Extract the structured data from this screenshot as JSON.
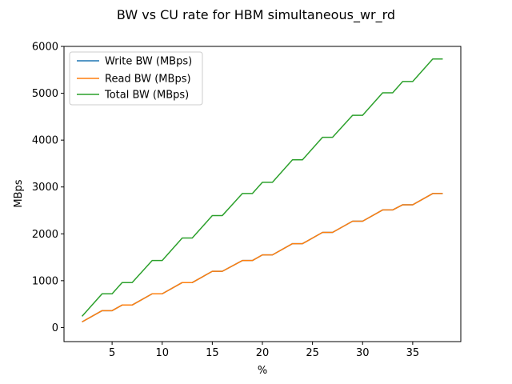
{
  "chart_data": {
    "type": "line",
    "title": "BW vs CU rate for HBM simultaneous_wr_rd",
    "xlabel": "%",
    "ylabel": "MBps",
    "xlim": [
      0.2,
      39.8
    ],
    "ylim": [
      -300,
      6000
    ],
    "xticks": [
      5,
      10,
      15,
      20,
      25,
      30,
      35
    ],
    "yticks": [
      0,
      1000,
      2000,
      3000,
      4000,
      5000,
      6000
    ],
    "legend_position": "upper-left",
    "grid": false,
    "x": [
      2,
      4,
      5,
      6,
      7,
      9,
      10,
      12,
      13,
      15,
      16,
      18,
      19,
      20,
      21,
      23,
      24,
      26,
      27,
      29,
      30,
      32,
      33,
      34,
      35,
      37,
      38
    ],
    "series": [
      {
        "name": "Write BW (MBps)",
        "color": "#1f77b4",
        "values": [
          120,
          360,
          360,
          480,
          480,
          720,
          720,
          960,
          960,
          1200,
          1200,
          1430,
          1430,
          1550,
          1550,
          1790,
          1790,
          2030,
          2030,
          2270,
          2270,
          2510,
          2510,
          2620,
          2620,
          2860,
          2860
        ]
      },
      {
        "name": "Read BW (MBps)",
        "color": "#ff7f0e",
        "values": [
          120,
          360,
          360,
          480,
          480,
          720,
          720,
          960,
          960,
          1200,
          1200,
          1430,
          1430,
          1550,
          1550,
          1790,
          1790,
          2030,
          2030,
          2270,
          2270,
          2510,
          2510,
          2620,
          2620,
          2860,
          2860
        ]
      },
      {
        "name": "Total BW (MBps)",
        "color": "#2ca02c",
        "values": [
          240,
          720,
          720,
          960,
          960,
          1430,
          1430,
          1910,
          1910,
          2390,
          2390,
          2860,
          2860,
          3100,
          3100,
          3580,
          3580,
          4060,
          4060,
          4530,
          4530,
          5010,
          5010,
          5250,
          5250,
          5730,
          5730
        ]
      }
    ]
  }
}
